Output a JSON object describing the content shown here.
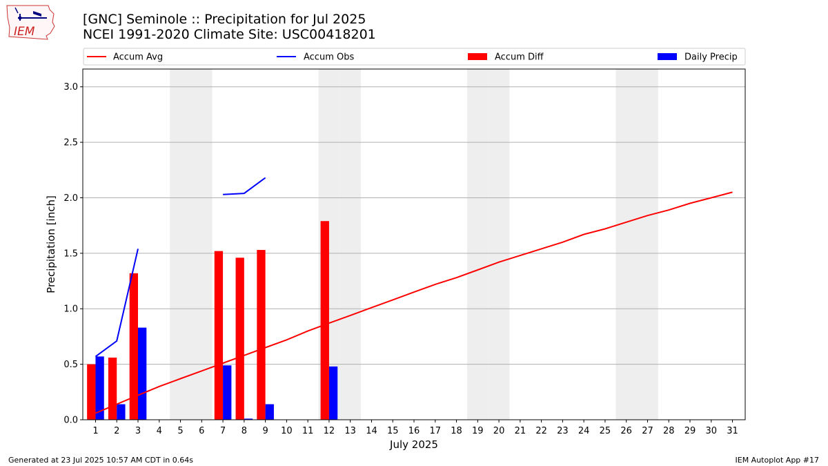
{
  "header": {
    "logo_text": "IEM",
    "title_line1": "[GNC] Seminole :: Precipitation for Jul 2025",
    "title_line2": "NCEI 1991-2020 Climate Site: USC00418201"
  },
  "footer": {
    "generated": "Generated at 23 Jul 2025 10:57 AM CDT in 0.64s",
    "app": "IEM Autoplot App #17"
  },
  "colors": {
    "avg": "#ff0000",
    "obs": "#0000ff",
    "diff": "#ff0000",
    "daily": "#0000ff",
    "weekend": "#eeeeee",
    "grid": "#b0b0b0"
  },
  "chart_data": {
    "type": "bar",
    "xlabel": "July 2025",
    "ylabel": "Precipitation [inch]",
    "ylim": [
      0,
      3.16
    ],
    "yticks": [
      0.0,
      0.5,
      1.0,
      1.5,
      2.0,
      2.5,
      3.0
    ],
    "ytick_labels": [
      "0.0",
      "0.5",
      "1.0",
      "1.5",
      "2.0",
      "2.5",
      "3.0"
    ],
    "x": [
      1,
      2,
      3,
      4,
      5,
      6,
      7,
      8,
      9,
      10,
      11,
      12,
      13,
      14,
      15,
      16,
      17,
      18,
      19,
      20,
      21,
      22,
      23,
      24,
      25,
      26,
      27,
      28,
      29,
      30,
      31
    ],
    "grid": "horizontal",
    "legend_position": "top",
    "weekend_shading_days": [
      5,
      6,
      12,
      13,
      19,
      20,
      26,
      27
    ],
    "series": [
      {
        "name": "Accum Avg",
        "kind": "line",
        "values": [
          0.06,
          0.14,
          0.22,
          0.3,
          0.37,
          0.44,
          0.51,
          0.58,
          0.65,
          0.72,
          0.8,
          0.87,
          0.94,
          1.01,
          1.08,
          1.15,
          1.22,
          1.28,
          1.35,
          1.42,
          1.48,
          1.54,
          1.6,
          1.67,
          1.72,
          1.78,
          1.84,
          1.89,
          1.95,
          2.0,
          2.05
        ]
      },
      {
        "name": "Accum Obs",
        "kind": "line",
        "values": [
          0.57,
          0.71,
          1.54,
          null,
          null,
          null,
          2.03,
          2.04,
          2.18,
          null,
          null,
          null,
          null,
          null,
          null,
          null,
          null,
          null,
          null,
          null,
          null,
          null,
          null,
          null,
          null,
          null,
          null,
          null,
          null,
          null,
          null
        ]
      },
      {
        "name": "Accum Diff",
        "kind": "bar",
        "values": [
          0.5,
          0.56,
          1.32,
          null,
          null,
          null,
          1.52,
          1.46,
          1.53,
          null,
          null,
          1.79,
          null,
          null,
          null,
          null,
          null,
          null,
          null,
          null,
          null,
          null,
          null,
          null,
          null,
          null,
          null,
          null,
          null,
          null,
          null
        ]
      },
      {
        "name": "Daily Precip",
        "kind": "bar",
        "values": [
          0.57,
          0.14,
          0.83,
          null,
          null,
          null,
          0.49,
          0.01,
          0.14,
          null,
          null,
          0.48,
          null,
          null,
          null,
          null,
          null,
          null,
          null,
          null,
          null,
          null,
          null,
          null,
          null,
          null,
          null,
          null,
          null,
          null,
          null
        ]
      }
    ]
  }
}
